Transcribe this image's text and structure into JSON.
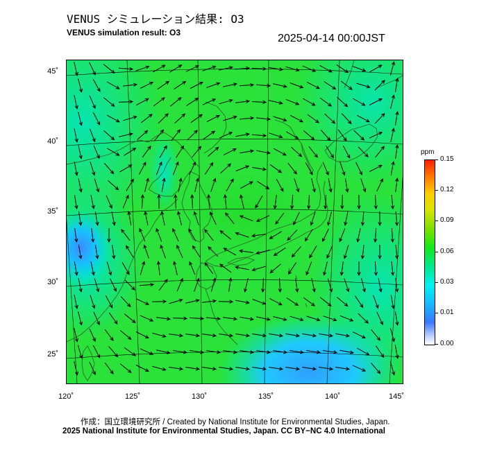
{
  "header": {
    "title_jp": "VENUS シミュレーション結果: O3",
    "title_en": "VENUS simulation result: O3",
    "timestamp": "2025-04-14 00:00JST"
  },
  "map": {
    "lat_ticks": [
      "45˚",
      "40˚",
      "35˚",
      "30˚",
      "25˚"
    ],
    "lon_ticks": [
      "120˚",
      "125˚",
      "130˚",
      "135˚",
      "140˚",
      "145˚"
    ],
    "lat_values": [
      45,
      40,
      35,
      30,
      25
    ],
    "lon_values": [
      120,
      125,
      130,
      135,
      140,
      145
    ],
    "lat_range": [
      23,
      46
    ],
    "lon_range": [
      120,
      145
    ],
    "field": "O3 concentration with wind vectors",
    "colors": {
      "background": "#1fe21f",
      "coast": "#2a6a2a",
      "arrow": "#000000"
    }
  },
  "colorbar": {
    "unit": "ppm",
    "ticks": [
      "0.15",
      "0.12",
      "0.09",
      "0.06",
      "0.03",
      "0.01",
      "0.00"
    ],
    "tick_values": [
      0.15,
      0.12,
      0.09,
      0.06,
      0.03,
      0.01,
      0.0
    ]
  },
  "footer": {
    "credit_jp": "作成：国立環境研究所 / Created by National Institute for Environmental Studies, Japan.",
    "credit_en": "2025 National Institute for Environmental Studies, Japan. CC BY−NC 4.0 International"
  }
}
